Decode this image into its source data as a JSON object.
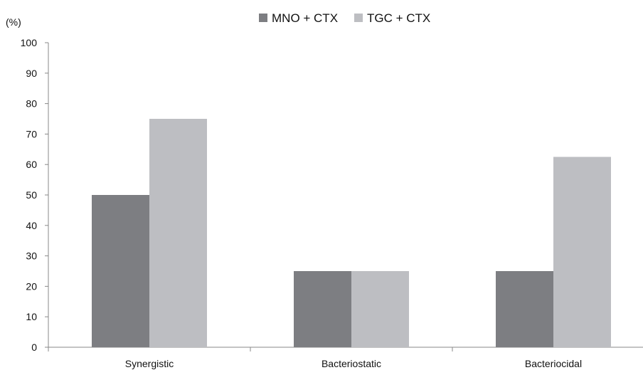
{
  "chart_data": {
    "type": "bar",
    "title": "",
    "xlabel": "",
    "ylabel": "(%)",
    "ylim": [
      0,
      100
    ],
    "yticks": [
      0,
      10,
      20,
      30,
      40,
      50,
      60,
      70,
      80,
      90,
      100
    ],
    "grid": false,
    "legend_position": "top-center",
    "categories": [
      "Synergistic",
      "Bacteriostatic",
      "Bacteriocidal"
    ],
    "series": [
      {
        "name": "MNO + CTX",
        "color": "#7d7e82",
        "values": [
          50,
          25,
          25
        ]
      },
      {
        "name": "TGC + CTX",
        "color": "#bdbec2",
        "values": [
          75,
          25,
          62.5
        ]
      }
    ]
  }
}
